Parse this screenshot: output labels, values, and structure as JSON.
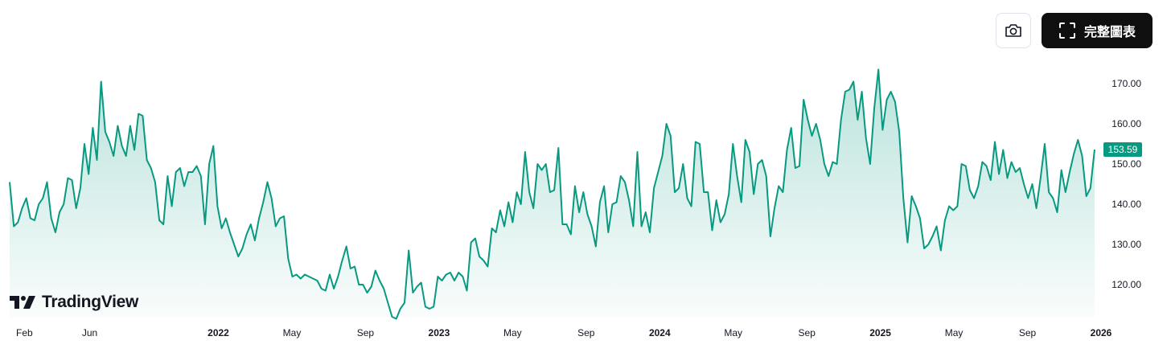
{
  "toolbar": {
    "camera_icon": "camera-icon",
    "fullscreen_icon": "fullscreen-corners-icon",
    "full_chart_label": "完整圖表"
  },
  "branding": {
    "logo_text": "TradingView"
  },
  "colors": {
    "line": "#089981",
    "area_top": "#089981",
    "last_price_bg": "#089981",
    "button_dark": "#0f0f0f"
  },
  "chart_data": {
    "type": "area",
    "x_tick_labels": [
      {
        "label": "Feb",
        "major": false,
        "date": "2021-02"
      },
      {
        "label": "Jun",
        "major": false,
        "date": "2021-06"
      },
      {
        "label": "2022",
        "major": true,
        "date": "2022-01"
      },
      {
        "label": "May",
        "major": false,
        "date": "2022-05"
      },
      {
        "label": "Sep",
        "major": false,
        "date": "2022-09"
      },
      {
        "label": "2023",
        "major": true,
        "date": "2023-01"
      },
      {
        "label": "May",
        "major": false,
        "date": "2023-05"
      },
      {
        "label": "Sep",
        "major": false,
        "date": "2023-09"
      },
      {
        "label": "2024",
        "major": true,
        "date": "2024-01"
      },
      {
        "label": "May",
        "major": false,
        "date": "2024-05"
      },
      {
        "label": "Sep",
        "major": false,
        "date": "2024-09"
      },
      {
        "label": "2025",
        "major": true,
        "date": "2025-01"
      },
      {
        "label": "May",
        "major": false,
        "date": "2025-05"
      },
      {
        "label": "Sep",
        "major": false,
        "date": "2025-09"
      },
      {
        "label": "2026",
        "major": true,
        "date": "2026-01"
      }
    ],
    "y_ticks": [
      "120.00",
      "130.00",
      "140.00",
      "150.00",
      "160.00",
      "170.00"
    ],
    "ylim": [
      111,
      174
    ],
    "last_price": "153.59",
    "grid": false,
    "series": [
      {
        "values": [
          145.5,
          134.5,
          135.5,
          139.0,
          141.5,
          136.5,
          136.0,
          140.0,
          141.5,
          145.5,
          136.5,
          133.0,
          138.0,
          140.0,
          146.5,
          146.0,
          139.0,
          144.0,
          155.0,
          147.5,
          159.0,
          151.0,
          170.5,
          158.0,
          155.5,
          152.0,
          159.5,
          154.5,
          152.0,
          159.5,
          153.5,
          162.5,
          162.0,
          151.0,
          149.0,
          145.5,
          136.0,
          135.0,
          147.0,
          139.5,
          148.0,
          149.0,
          144.5,
          148.0,
          148.0,
          149.5,
          147.0,
          135.0,
          150.0,
          154.5,
          139.5,
          134.0,
          136.5,
          133.0,
          130.0,
          127.0,
          129.0,
          132.5,
          135.0,
          131.0,
          136.5,
          140.5,
          145.5,
          141.5,
          134.5,
          136.5,
          137.0,
          126.5,
          122.0,
          122.5,
          121.5,
          122.5,
          122.0,
          121.5,
          121.0,
          119.0,
          118.5,
          122.5,
          119.0,
          122.0,
          126.0,
          129.5,
          124.0,
          124.5,
          120.0,
          120.0,
          118.0,
          119.5,
          123.5,
          121.0,
          119.0,
          115.5,
          112.0,
          111.5,
          114.0,
          115.5,
          128.5,
          118.0,
          119.5,
          120.5,
          114.5,
          114.0,
          114.5,
          122.0,
          121.0,
          122.5,
          123.0,
          121.0,
          123.0,
          122.0,
          118.5,
          130.5,
          131.5,
          127.0,
          126.0,
          124.5,
          134.0,
          133.0,
          138.5,
          134.5,
          140.5,
          135.5,
          143.0,
          140.0,
          153.0,
          143.0,
          139.0,
          150.0,
          148.5,
          150.0,
          143.0,
          143.5,
          154.0,
          135.0,
          135.0,
          132.5,
          144.5,
          138.0,
          143.0,
          137.5,
          134.5,
          129.5,
          140.5,
          144.5,
          133.0,
          140.0,
          140.5,
          147.0,
          145.5,
          141.0,
          134.5,
          153.0,
          134.5,
          138.0,
          133.0,
          144.0,
          148.0,
          152.0,
          160.0,
          157.0,
          143.0,
          144.0,
          150.0,
          141.5,
          139.5,
          155.5,
          155.0,
          143.0,
          143.0,
          133.5,
          141.0,
          135.5,
          137.5,
          142.5,
          155.0,
          147.0,
          140.5,
          156.0,
          153.0,
          142.5,
          150.0,
          151.0,
          147.0,
          132.0,
          139.0,
          144.5,
          143.0,
          153.5,
          159.0,
          149.0,
          149.5,
          166.0,
          161.0,
          157.0,
          160.0,
          156.0,
          150.0,
          147.0,
          150.5,
          150.0,
          161.0,
          168.0,
          168.5,
          170.5,
          161.0,
          168.0,
          156.5,
          150.0,
          164.0,
          173.5,
          158.5,
          166.0,
          168.0,
          165.5,
          158.0,
          141.5,
          130.5,
          142.0,
          139.5,
          136.5,
          129.0,
          130.0,
          132.0,
          134.5,
          128.5,
          136.0,
          139.5,
          138.5,
          139.5,
          150.0,
          149.5,
          143.5,
          141.5,
          144.5,
          150.5,
          149.5,
          146.0,
          155.5,
          147.5,
          153.5,
          146.5,
          150.5,
          148.0,
          149.0,
          145.0,
          141.5,
          145.0,
          139.0,
          146.5,
          155.0,
          143.0,
          141.5,
          138.0,
          148.5,
          143.0,
          148.0,
          152.5,
          156.0,
          152.0,
          142.0,
          144.0,
          153.59
        ]
      }
    ]
  }
}
